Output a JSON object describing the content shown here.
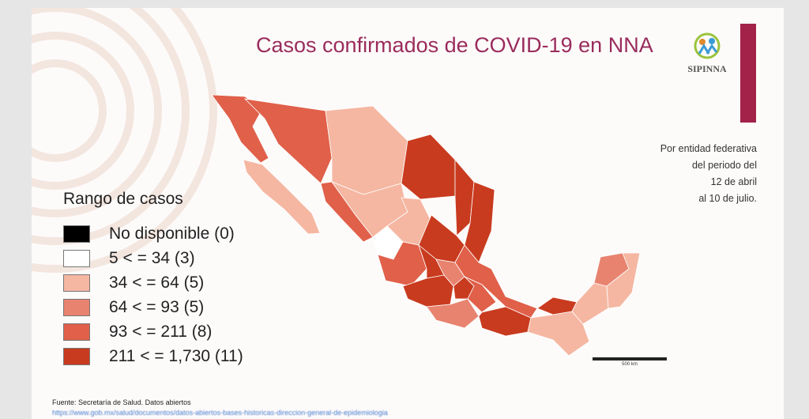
{
  "title": "Casos confirmados de COVID-19 en NNA",
  "logo": {
    "text": "SIPINNA"
  },
  "period": [
    "Por entidad federativa",
    "del periodo del",
    "12 de abril",
    "al 10 de julio."
  ],
  "legend": {
    "title": "Rango de casos",
    "items": [
      {
        "label": "No disponible (0)",
        "color": "#000000"
      },
      {
        "label": "5 < = 34 (3)",
        "color": "#ffffff"
      },
      {
        "label": "34 < = 64 (5)",
        "color": "#f5b7a2"
      },
      {
        "label": "64 < = 93 (5)",
        "color": "#e8836f"
      },
      {
        "label": "93 < = 211 (8)",
        "color": "#e0604a"
      },
      {
        "label": "211 < = 1,730 (11)",
        "color": "#c93b1f"
      }
    ]
  },
  "scale_label": "500 km",
  "source": "Fuente: Secretaría de Salud. Datos abiertos",
  "source_link": "https://www.gob.mx/salud/documentos/datos-abiertos-bases-historicas-direccion-general-de-epidemiologia",
  "accent_color": "#9a2c5c",
  "bar_color": "#a3224a"
}
